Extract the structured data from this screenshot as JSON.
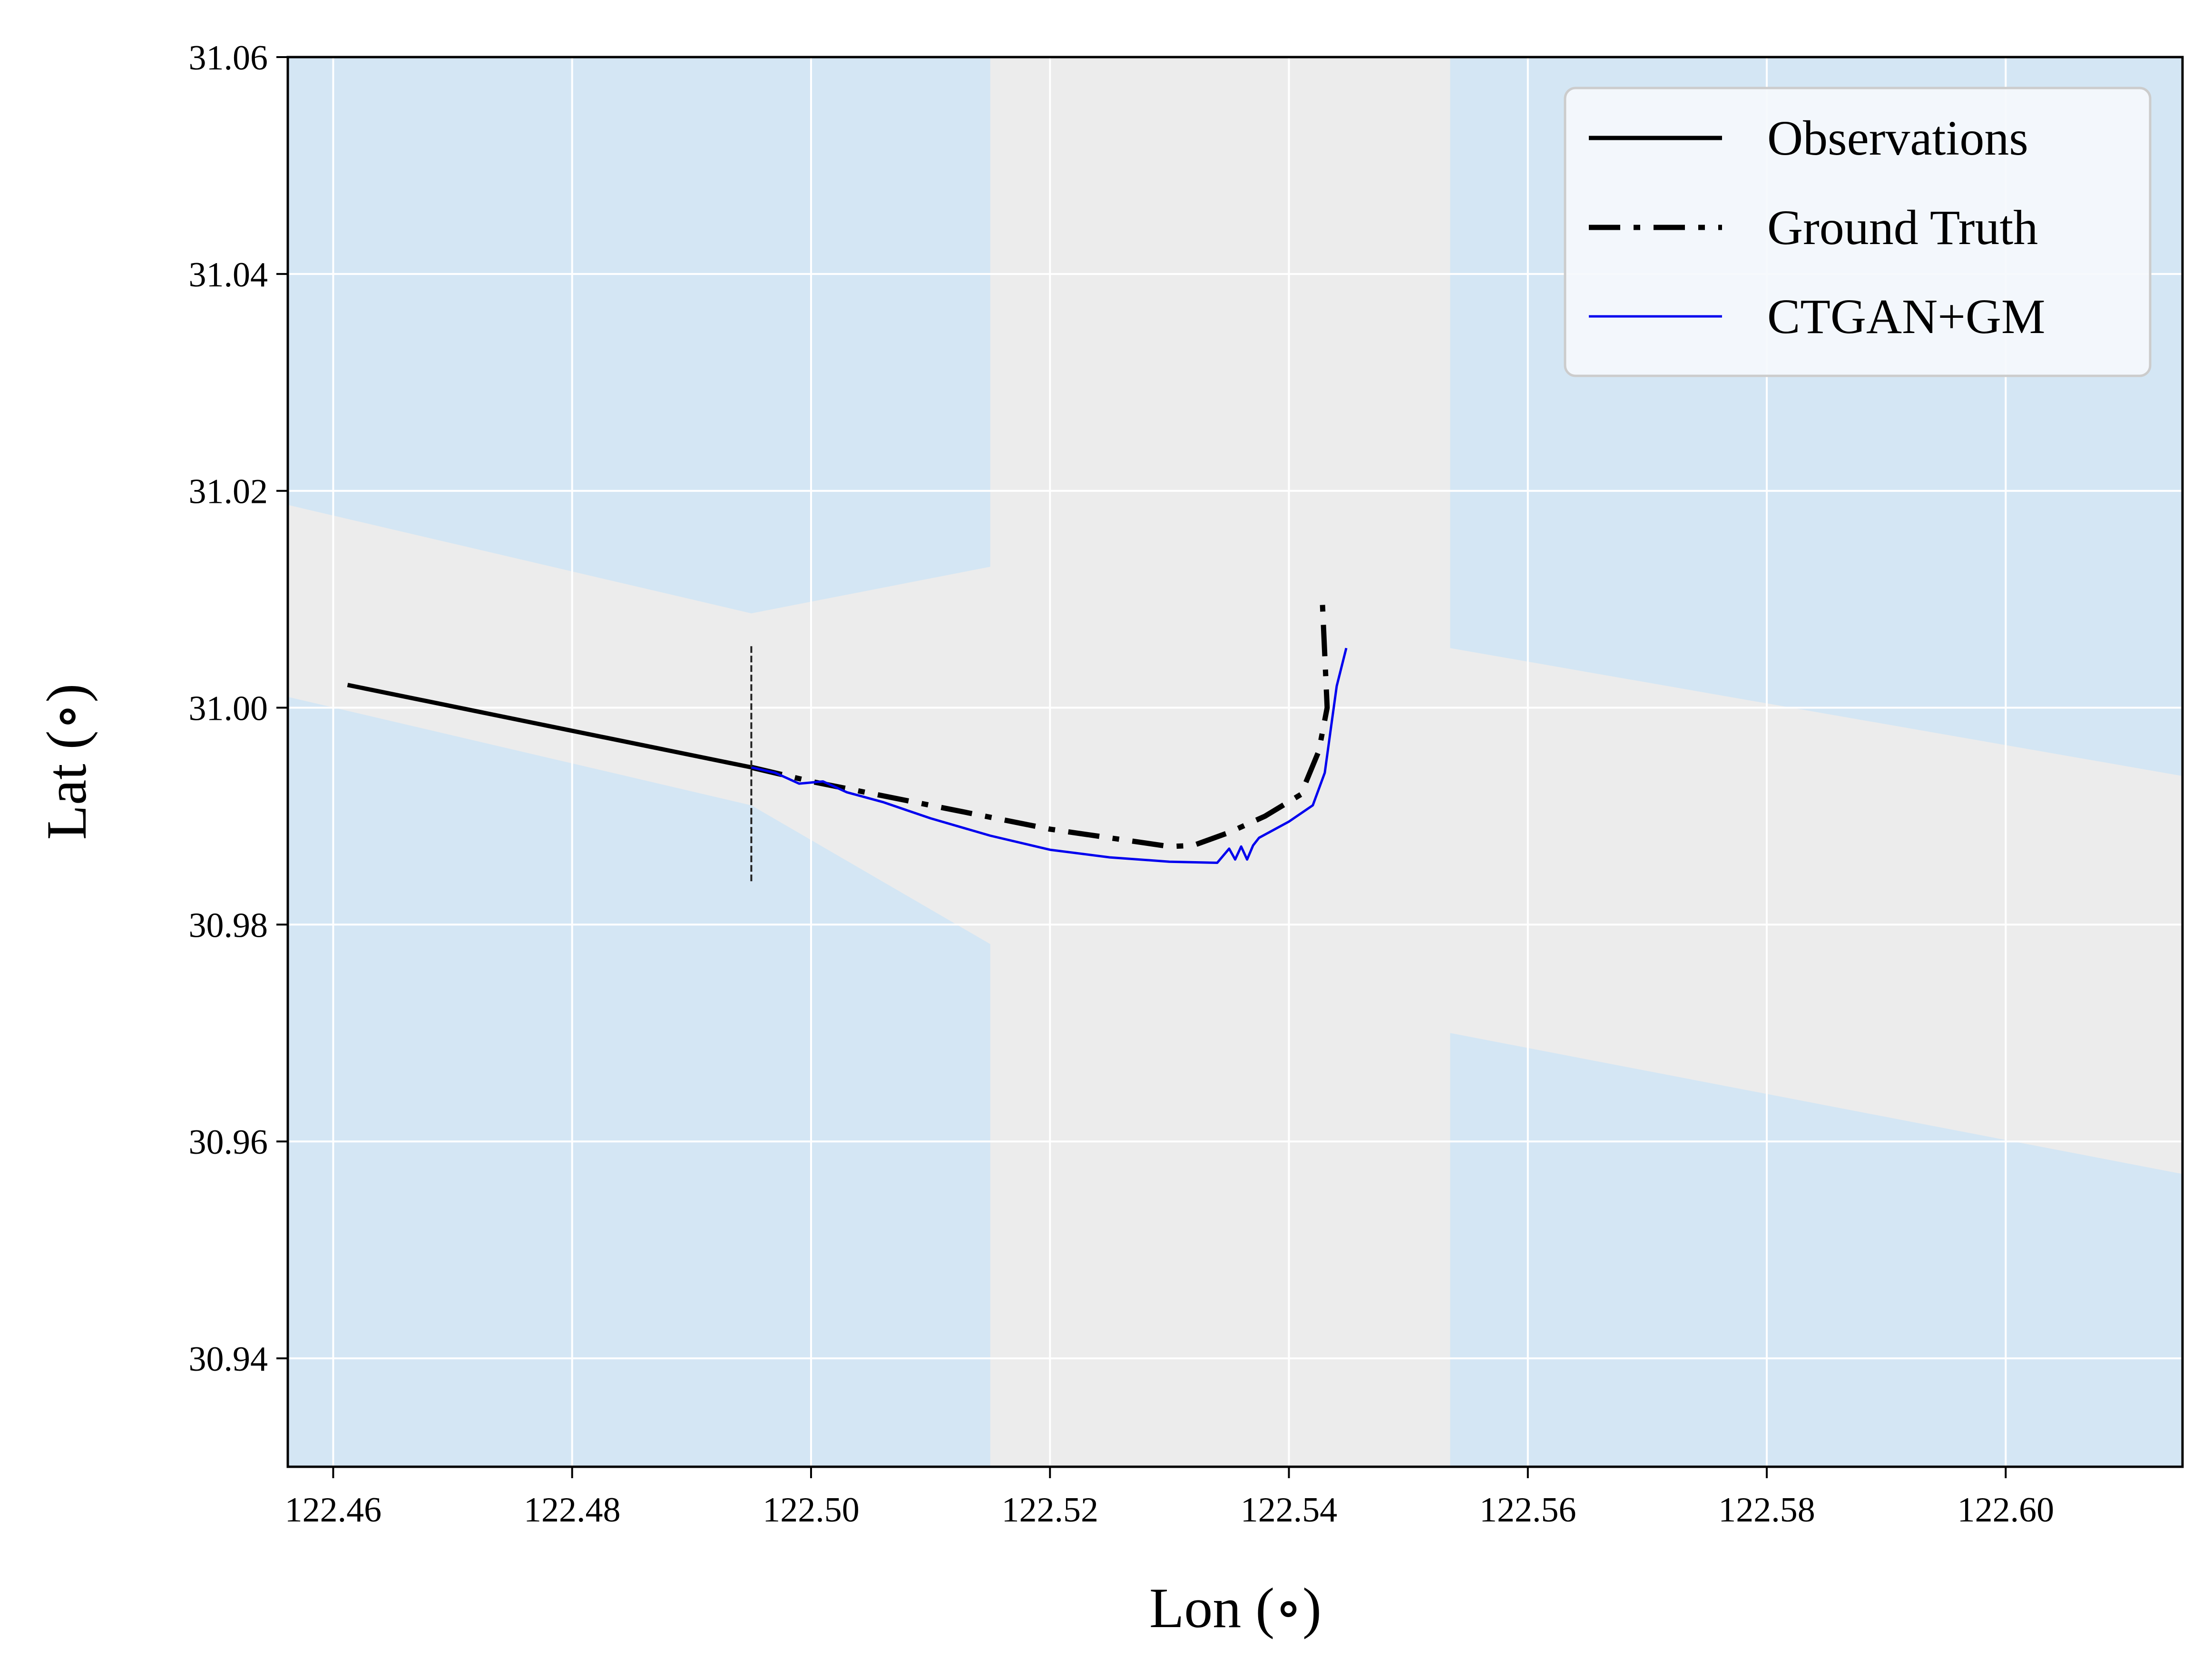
{
  "chart_data": {
    "type": "line",
    "xlabel": "Lon (∘)",
    "ylabel": "Lat (∘)",
    "xlim": [
      122.4562,
      122.6148
    ],
    "ylim": [
      30.93,
      31.06
    ],
    "xticks": [
      122.46,
      122.48,
      122.5,
      122.52,
      122.54,
      122.56,
      122.58,
      122.6
    ],
    "xtick_labels": [
      "122.46",
      "122.48",
      "122.50",
      "122.52",
      "122.54",
      "122.56",
      "122.58",
      "122.60"
    ],
    "yticks": [
      30.94,
      30.96,
      30.98,
      31.0,
      31.02,
      31.04,
      31.06
    ],
    "ytick_labels": [
      "30.94",
      "30.96",
      "30.98",
      "31.00",
      "31.02",
      "31.04",
      "31.06"
    ],
    "grid": true,
    "legend_position": "top-right",
    "colors": {
      "water": "#d4e6f4",
      "land": "#ececec",
      "grid": "#ffffff",
      "observations": "#000000",
      "ground_truth": "#000000",
      "ctgan": "#0000ee",
      "marker": "#222222"
    },
    "background": {
      "land_regions": [
        [
          [
            122.4562,
            31.0187
          ],
          [
            122.495,
            31.0087
          ],
          [
            122.515,
            31.013
          ],
          [
            122.515,
            31.06
          ],
          [
            122.5535,
            31.06
          ],
          [
            122.5535,
            31.0055
          ],
          [
            122.6148,
            30.9937
          ],
          [
            122.6148,
            30.957
          ],
          [
            122.5535,
            30.97
          ],
          [
            122.5535,
            30.93
          ],
          [
            122.515,
            30.93
          ],
          [
            122.515,
            30.9782
          ],
          [
            122.495,
            30.991
          ],
          [
            122.4562,
            31.001
          ]
        ]
      ]
    },
    "event_marker": {
      "x": 122.495,
      "y_range": [
        30.984,
        31.0058
      ]
    },
    "series": [
      {
        "name": "Observations",
        "style": "solid",
        "x": [
          122.4612,
          122.495
        ],
        "y": [
          31.0021,
          30.9945
        ]
      },
      {
        "name": "Ground Truth",
        "style": "dashdot",
        "x": [
          122.495,
          122.5,
          122.51,
          122.52,
          122.53,
          122.532,
          122.535,
          122.538,
          122.541,
          122.5425,
          122.5432,
          122.5428
        ],
        "y": [
          30.9945,
          30.9932,
          30.991,
          30.9888,
          30.9872,
          30.9873,
          30.9885,
          30.99,
          30.992,
          30.996,
          31.0,
          31.0098
        ]
      },
      {
        "name": "CTGAN+GM",
        "style": "solid",
        "x": [
          122.495,
          122.497,
          122.499,
          122.501,
          122.503,
          122.506,
          122.51,
          122.515,
          122.52,
          122.525,
          122.53,
          122.534,
          122.535,
          122.5355,
          122.536,
          122.5365,
          122.537,
          122.5375,
          122.54,
          122.542,
          122.543,
          122.5435,
          122.544,
          122.5448
        ],
        "y": [
          30.9945,
          30.994,
          30.993,
          30.9932,
          30.9922,
          30.9913,
          30.9898,
          30.9882,
          30.9869,
          30.9862,
          30.9858,
          30.9857,
          30.987,
          30.986,
          30.9872,
          30.986,
          30.9873,
          30.988,
          30.9895,
          30.991,
          30.994,
          30.998,
          31.002,
          31.0055
        ]
      }
    ]
  }
}
